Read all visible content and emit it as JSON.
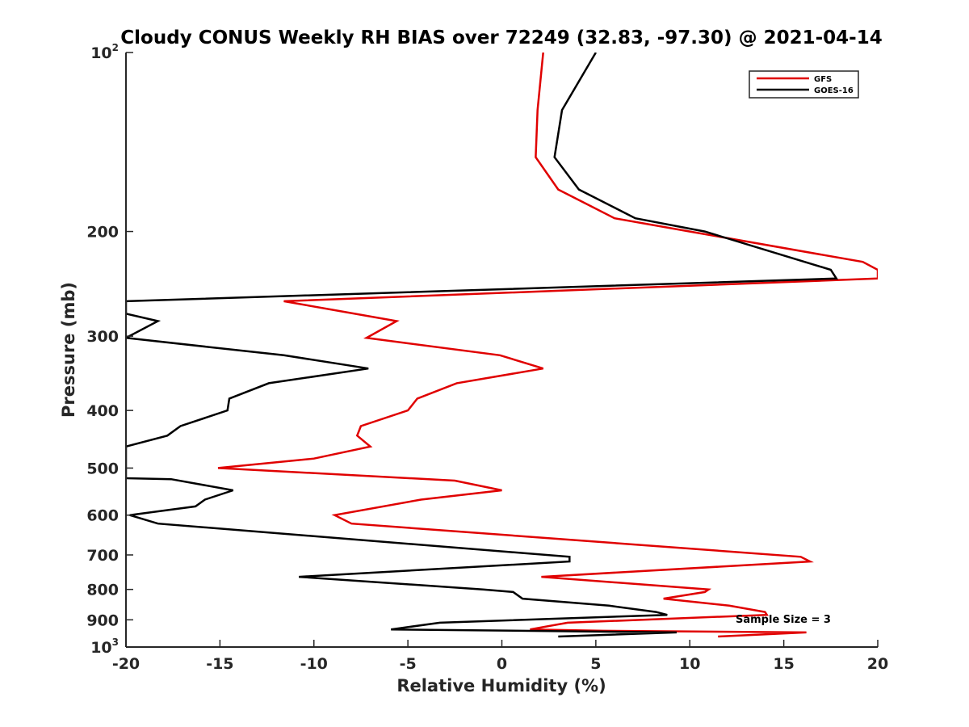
{
  "chart_data": {
    "type": "line",
    "title": "Cloudy CONUS Weekly RH BIAS over 72249 (32.83, -97.30) @ 2021-04-14",
    "xlabel": "Relative Humidity (%)",
    "ylabel": "Pressure (mb)",
    "xlim": [
      -20,
      20
    ],
    "ylim": [
      100,
      1000
    ],
    "y_scale": "log",
    "y_reversed": true,
    "grid": false,
    "legend_position": "top-right",
    "x_ticks": [
      {
        "value": -20,
        "label": "-20"
      },
      {
        "value": -15,
        "label": "-15"
      },
      {
        "value": -10,
        "label": "-10"
      },
      {
        "value": -5,
        "label": "-5"
      },
      {
        "value": 0,
        "label": "0"
      },
      {
        "value": 5,
        "label": "5"
      },
      {
        "value": 10,
        "label": "10"
      },
      {
        "value": 15,
        "label": "15"
      },
      {
        "value": 20,
        "label": "20"
      }
    ],
    "y_ticks": [
      {
        "value": 100,
        "base": "10",
        "exp": "2"
      },
      {
        "value": 200,
        "base": "200",
        "exp": ""
      },
      {
        "value": 300,
        "base": "300",
        "exp": ""
      },
      {
        "value": 400,
        "base": "400",
        "exp": ""
      },
      {
        "value": 500,
        "base": "500",
        "exp": ""
      },
      {
        "value": 600,
        "base": "600",
        "exp": ""
      },
      {
        "value": 700,
        "base": "700",
        "exp": ""
      },
      {
        "value": 800,
        "base": "800",
        "exp": ""
      },
      {
        "value": 900,
        "base": "900",
        "exp": ""
      },
      {
        "value": 1000,
        "base": "10",
        "exp": "3"
      }
    ],
    "annotation": "Sample Size = 3",
    "series": [
      {
        "name": "GFS",
        "color": "#e00000",
        "points": [
          [
            2.2,
            100
          ],
          [
            1.9,
            125
          ],
          [
            1.8,
            150
          ],
          [
            3.0,
            170
          ],
          [
            6.0,
            190
          ],
          [
            10.0,
            200
          ],
          [
            19.2,
            225
          ],
          [
            20.0,
            232
          ],
          [
            20.0,
            240
          ],
          [
            -11.6,
            262
          ],
          [
            -5.6,
            283
          ],
          [
            -7.2,
            302
          ],
          [
            -0.1,
            323
          ],
          [
            2.2,
            340
          ],
          [
            -2.4,
            360
          ],
          [
            -4.5,
            382
          ],
          [
            -5.0,
            400
          ],
          [
            -7.5,
            425
          ],
          [
            -7.7,
            441
          ],
          [
            -7.0,
            460
          ],
          [
            -10.0,
            482
          ],
          [
            -15.1,
            500
          ],
          [
            -2.5,
            525
          ],
          [
            0.0,
            545
          ],
          [
            -4.3,
            565
          ],
          [
            -8.9,
            600
          ],
          [
            -8.0,
            620
          ],
          [
            15.9,
            705
          ],
          [
            16.4,
            718
          ],
          [
            2.1,
            762
          ],
          [
            11.0,
            800
          ],
          [
            10.8,
            808
          ],
          [
            8.6,
            829
          ],
          [
            12.1,
            852
          ],
          [
            14.0,
            873
          ],
          [
            14.1,
            883
          ],
          [
            3.5,
            910
          ],
          [
            1.5,
            934
          ],
          [
            5.4,
            939
          ],
          [
            16.2,
            945
          ],
          [
            11.5,
            960
          ]
        ]
      },
      {
        "name": "GOES-16",
        "color": "#000000",
        "points": [
          [
            5.0,
            100
          ],
          [
            3.2,
            125
          ],
          [
            2.8,
            150
          ],
          [
            4.1,
            170
          ],
          [
            7.1,
            190
          ],
          [
            10.8,
            200
          ],
          [
            17.5,
            232
          ],
          [
            17.8,
            240
          ],
          [
            -20.0,
            262
          ],
          [
            -20.0,
            275
          ],
          [
            -18.3,
            283
          ],
          [
            -20.0,
            302
          ],
          [
            -11.6,
            323
          ],
          [
            -7.1,
            340
          ],
          [
            -12.4,
            360
          ],
          [
            -14.5,
            382
          ],
          [
            -14.6,
            400
          ],
          [
            -17.1,
            425
          ],
          [
            -17.8,
            441
          ],
          [
            -20.0,
            460
          ],
          [
            -20.0,
            520
          ],
          [
            -17.6,
            522
          ],
          [
            -14.3,
            545
          ],
          [
            -15.8,
            565
          ],
          [
            -16.3,
            580
          ],
          [
            -19.8,
            600
          ],
          [
            -18.3,
            620
          ],
          [
            3.6,
            705
          ],
          [
            3.6,
            718
          ],
          [
            -10.8,
            762
          ],
          [
            -1.0,
            800
          ],
          [
            0.6,
            808
          ],
          [
            1.1,
            829
          ],
          [
            5.7,
            852
          ],
          [
            8.2,
            873
          ],
          [
            8.8,
            883
          ],
          [
            -3.3,
            910
          ],
          [
            -5.9,
            934
          ],
          [
            9.3,
            945
          ],
          [
            3.0,
            960
          ]
        ]
      }
    ]
  }
}
